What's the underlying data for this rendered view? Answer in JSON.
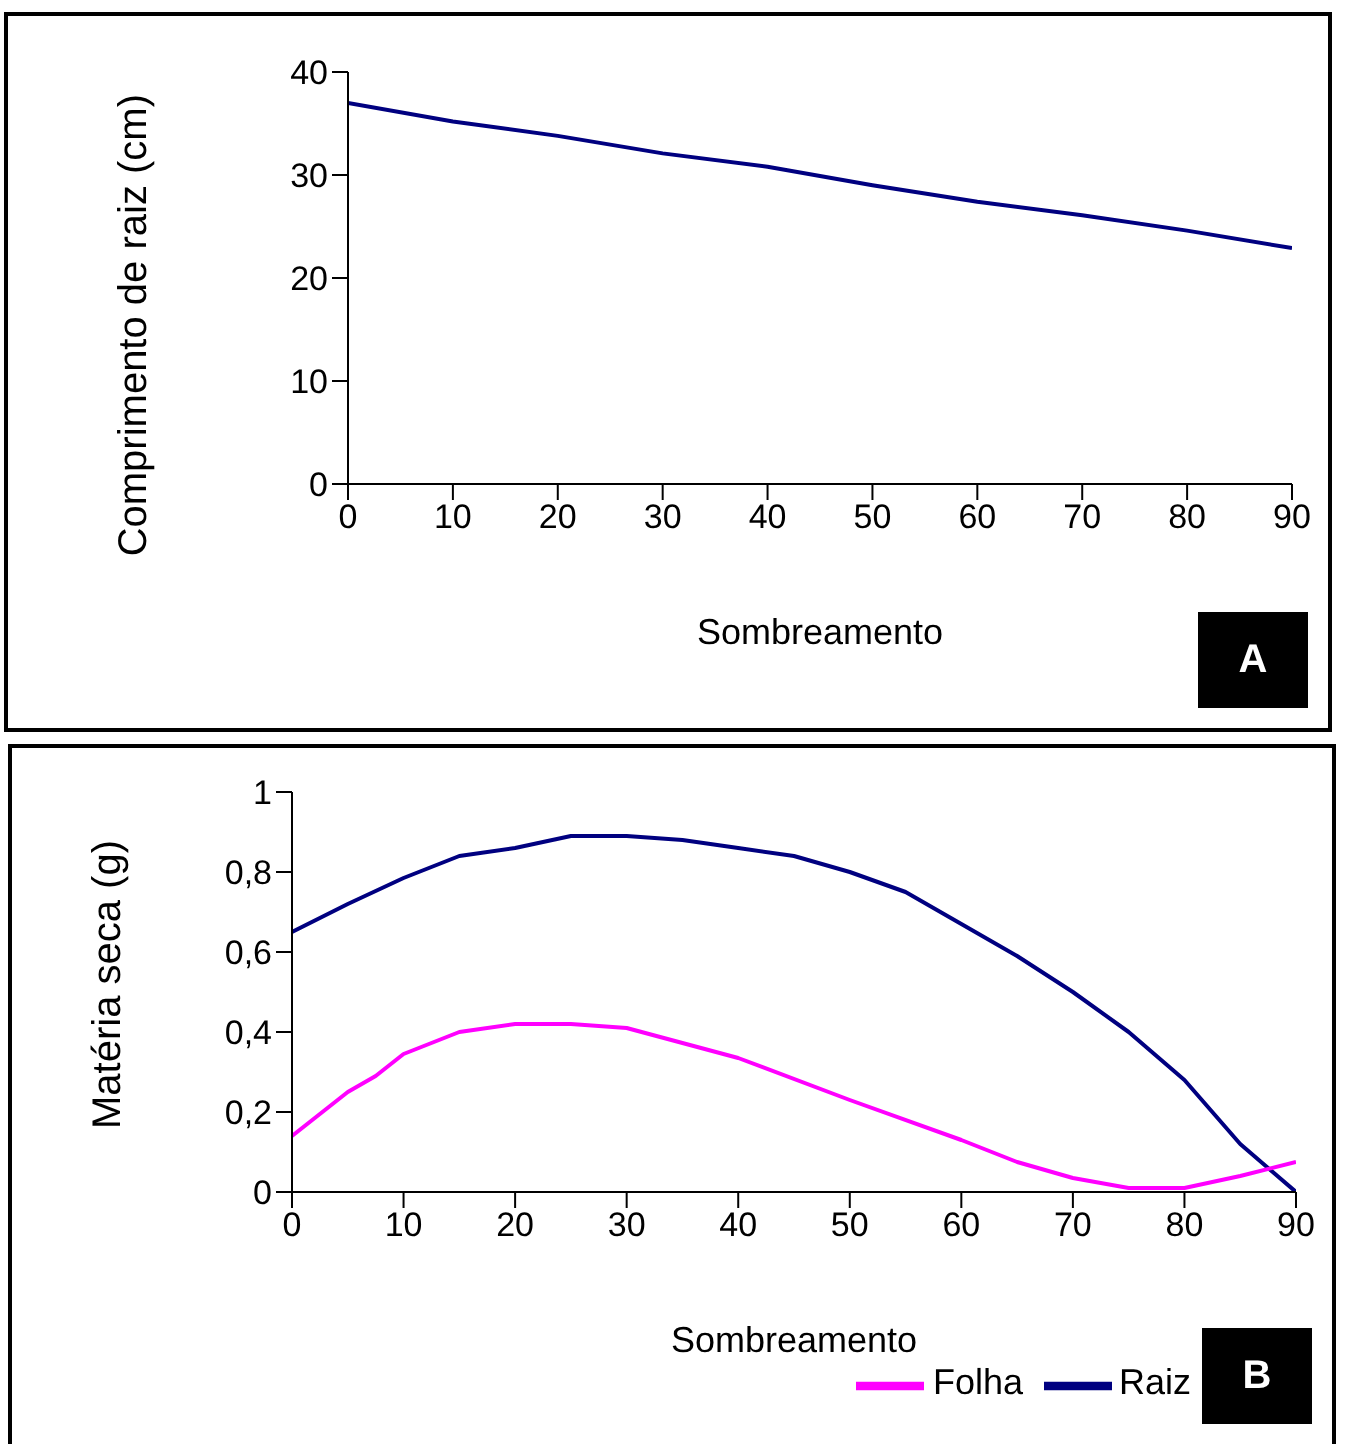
{
  "chart_data": [
    {
      "type": "line",
      "xlabel": "Sombreamento",
      "ylabel": "Comprimento de raiz (cm)",
      "annotations": [
        "A"
      ],
      "x": [
        0,
        10,
        20,
        30,
        40,
        50,
        60,
        70,
        80,
        90
      ],
      "series": [
        {
          "color": "#000080",
          "values": [
            37,
            35.2,
            33.8,
            32.1,
            30.8,
            29,
            27.4,
            26.1,
            24.6,
            22.9
          ]
        }
      ],
      "xlim": [
        0,
        90
      ],
      "xticks": [
        0,
        10,
        20,
        30,
        40,
        50,
        60,
        70,
        80,
        90
      ],
      "ylim": [
        0,
        40
      ],
      "yticks": [
        0,
        10,
        20,
        30,
        40
      ],
      "grid": false,
      "legend": false
    },
    {
      "type": "line",
      "xlabel": "Sombreamento",
      "ylabel": "Matéria seca (g)",
      "annotations": [
        "B"
      ],
      "series": [
        {
          "name": "Raiz",
          "color": "#000080",
          "x": [
            0,
            5,
            10,
            15,
            20,
            25,
            30,
            35,
            40,
            45,
            50,
            55,
            60,
            65,
            70,
            75,
            80,
            85,
            90
          ],
          "values": [
            0.65,
            0.72,
            0.785,
            0.84,
            0.86,
            0.89,
            0.89,
            0.88,
            0.86,
            0.84,
            0.8,
            0.75,
            0.67,
            0.59,
            0.5,
            0.4,
            0.28,
            0.12,
            0
          ]
        },
        {
          "name": "Folha",
          "color": "#ff00ff",
          "x": [
            0,
            5,
            7.5,
            10,
            15,
            20,
            25,
            30,
            40,
            50,
            60,
            65,
            70,
            75,
            80,
            85,
            90
          ],
          "values": [
            0.14,
            0.25,
            0.29,
            0.345,
            0.4,
            0.42,
            0.42,
            0.41,
            0.335,
            0.23,
            0.13,
            0.075,
            0.035,
            0.01,
            0.01,
            0.04,
            0.075
          ]
        }
      ],
      "xlim": [
        0,
        90
      ],
      "xticks": [
        0,
        10,
        20,
        30,
        40,
        50,
        60,
        70,
        80,
        90
      ],
      "ylim": [
        0,
        1
      ],
      "yticks": [
        0,
        {
          "value": 0.2,
          "label": "0,2"
        },
        {
          "value": 0.4,
          "label": "0,4"
        },
        {
          "value": 0.6,
          "label": "0,6"
        },
        {
          "value": 0.8,
          "label": "0,8"
        },
        1
      ],
      "grid": false,
      "legend": "bottom"
    }
  ]
}
